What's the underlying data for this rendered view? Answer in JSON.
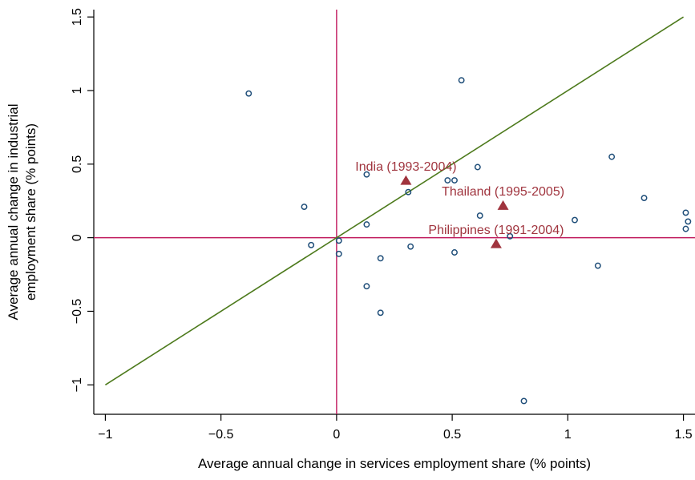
{
  "colors": {
    "point_stroke": "#1f4e79",
    "highlight": "#a0343e",
    "reference_line": "#c0185c",
    "diagonal": "#4d7a1c",
    "axis": "#000000"
  },
  "chart_data": {
    "type": "scatter",
    "title": "",
    "xlabel": "Average annual change in services employment share (% points)",
    "ylabel_lines": [
      "Average annual change in industrial",
      "employment share (% points)"
    ],
    "xlim": [
      -1.05,
      1.55
    ],
    "ylim": [
      -1.2,
      1.55
    ],
    "x_ticks": [
      -1,
      -0.5,
      0,
      0.5,
      1,
      1.5
    ],
    "x_tick_labels": [
      "−1",
      "−0.5",
      "0",
      "0.5",
      "1",
      "1.5"
    ],
    "y_ticks": [
      -1,
      -0.5,
      0,
      0.5,
      1,
      1.5
    ],
    "y_tick_labels": [
      "−1",
      "−0.5",
      "0",
      "0.5",
      "1",
      "1.5"
    ],
    "grid": false,
    "reference_lines": {
      "x": 0,
      "y": 0
    },
    "diagonal": {
      "from": [
        -1,
        -1
      ],
      "to": [
        1.5,
        1.5
      ]
    },
    "points": [
      {
        "x": -0.38,
        "y": 0.98
      },
      {
        "x": -0.14,
        "y": 0.21
      },
      {
        "x": -0.11,
        "y": -0.05
      },
      {
        "x": 0.01,
        "y": -0.02
      },
      {
        "x": 0.01,
        "y": -0.11
      },
      {
        "x": 0.13,
        "y": 0.43
      },
      {
        "x": 0.13,
        "y": 0.09
      },
      {
        "x": 0.13,
        "y": -0.33
      },
      {
        "x": 0.19,
        "y": -0.14
      },
      {
        "x": 0.19,
        "y": -0.51
      },
      {
        "x": 0.31,
        "y": 0.31
      },
      {
        "x": 0.32,
        "y": -0.06
      },
      {
        "x": 0.48,
        "y": 0.39
      },
      {
        "x": 0.51,
        "y": 0.39
      },
      {
        "x": 0.51,
        "y": -0.1
      },
      {
        "x": 0.54,
        "y": 1.07
      },
      {
        "x": 0.61,
        "y": 0.48
      },
      {
        "x": 0.62,
        "y": 0.15
      },
      {
        "x": 0.75,
        "y": 0.01
      },
      {
        "x": 0.81,
        "y": -1.11
      },
      {
        "x": 1.03,
        "y": 0.12
      },
      {
        "x": 1.13,
        "y": -0.19
      },
      {
        "x": 1.19,
        "y": 0.55
      },
      {
        "x": 1.33,
        "y": 0.27
      },
      {
        "x": 1.51,
        "y": 0.17
      },
      {
        "x": 1.52,
        "y": 0.11
      },
      {
        "x": 1.51,
        "y": 0.06
      }
    ],
    "highlighted": [
      {
        "label": "India (1993-2004)",
        "x": 0.3,
        "y": 0.39
      },
      {
        "label": "Thailand (1995-2005)",
        "x": 0.72,
        "y": 0.22
      },
      {
        "label": "Philippines (1991-2004)",
        "x": 0.69,
        "y": -0.04
      }
    ]
  }
}
